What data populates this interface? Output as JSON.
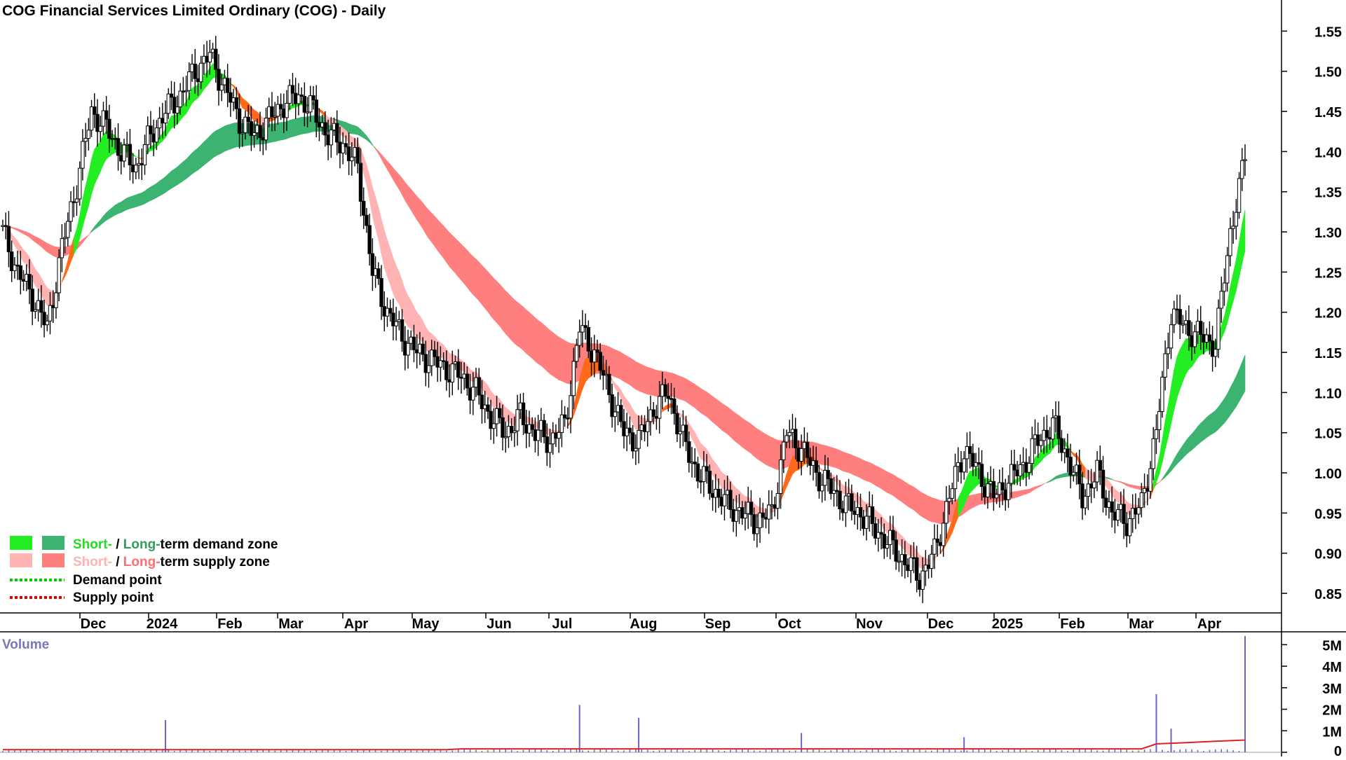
{
  "title": "COG Financial Services Limited Ordinary (COG) - Daily",
  "volume_label": "Volume",
  "legend": {
    "row1": {
      "short": "Short-",
      "sep": " / ",
      "long": "Long-",
      "rest": "term demand zone"
    },
    "row2": {
      "short": "Short-",
      "sep": " / ",
      "long": "Long-",
      "rest": "term supply zone"
    },
    "row3": "Demand point",
    "row4": "Supply point"
  },
  "colors": {
    "short_demand": "#22ee22",
    "long_demand": "#3cb371",
    "short_supply": "#ffb3b3",
    "long_supply": "#ff7f7f",
    "overlap": "#ff6a1a",
    "demand_point": "#00cc00",
    "supply_point": "#dd0000",
    "volume_bar": "#6666cc",
    "volume_avg": "#dd2222",
    "volume_label": "#7777bb"
  },
  "chart_data": {
    "type": "candlestick",
    "title": "COG Financial Services Limited Ordinary (COG) - Daily",
    "price_axis": {
      "ticks": [
        "1.55",
        "1.50",
        "1.45",
        "1.40",
        "1.35",
        "1.30",
        "1.25",
        "1.20",
        "1.15",
        "1.10",
        "1.05",
        "1.00",
        "0.95",
        "0.90",
        "0.85"
      ],
      "range": [
        0.83,
        1.58
      ]
    },
    "volume_axis": {
      "ticks": [
        "5M",
        "4M",
        "3M",
        "2M",
        "1M",
        "0"
      ],
      "range": [
        0,
        5500000
      ]
    },
    "months": [
      "Dec",
      "2024",
      "Feb",
      "Mar",
      "Apr",
      "May",
      "Jun",
      "Jul",
      "Aug",
      "Sep",
      "Oct",
      "Nov",
      "Dec",
      "2025",
      "Feb",
      "Mar",
      "Apr"
    ],
    "close_path": [
      [
        0,
        1.3
      ],
      [
        1,
        1.25
      ],
      [
        2,
        1.22
      ],
      [
        3,
        1.18
      ],
      [
        4,
        1.28
      ],
      [
        5,
        1.36
      ],
      [
        6,
        1.45
      ],
      [
        7,
        1.43
      ],
      [
        8,
        1.4
      ],
      [
        9,
        1.38
      ],
      [
        10,
        1.42
      ],
      [
        11,
        1.45
      ],
      [
        12,
        1.47
      ],
      [
        13,
        1.5
      ],
      [
        14,
        1.52
      ],
      [
        15,
        1.48
      ],
      [
        16,
        1.44
      ],
      [
        17,
        1.42
      ],
      [
        18,
        1.44
      ],
      [
        19,
        1.46
      ],
      [
        20,
        1.47
      ],
      [
        21,
        1.45
      ],
      [
        22,
        1.42
      ],
      [
        23,
        1.41
      ],
      [
        24,
        1.38
      ],
      [
        25,
        1.25
      ],
      [
        26,
        1.2
      ],
      [
        27,
        1.17
      ],
      [
        28,
        1.15
      ],
      [
        29,
        1.14
      ],
      [
        30,
        1.13
      ],
      [
        31,
        1.12
      ],
      [
        32,
        1.1
      ],
      [
        33,
        1.07
      ],
      [
        34,
        1.05
      ],
      [
        35,
        1.07
      ],
      [
        36,
        1.05
      ],
      [
        37,
        1.04
      ],
      [
        38,
        1.06
      ],
      [
        39,
        1.18
      ],
      [
        40,
        1.15
      ],
      [
        41,
        1.1
      ],
      [
        42,
        1.05
      ],
      [
        43,
        1.04
      ],
      [
        44,
        1.08
      ],
      [
        45,
        1.1
      ],
      [
        46,
        1.04
      ],
      [
        47,
        1.0
      ],
      [
        48,
        0.98
      ],
      [
        49,
        0.96
      ],
      [
        50,
        0.95
      ],
      [
        51,
        0.94
      ],
      [
        52,
        0.95
      ],
      [
        53,
        1.05
      ],
      [
        54,
        1.03
      ],
      [
        55,
        1.0
      ],
      [
        56,
        0.98
      ],
      [
        57,
        0.96
      ],
      [
        58,
        0.95
      ],
      [
        59,
        0.93
      ],
      [
        60,
        0.91
      ],
      [
        61,
        0.89
      ],
      [
        62,
        0.87
      ],
      [
        63,
        0.9
      ],
      [
        64,
        0.97
      ],
      [
        65,
        1.03
      ],
      [
        66,
        1.0
      ],
      [
        67,
        0.97
      ],
      [
        68,
        0.99
      ],
      [
        69,
        1.01
      ],
      [
        70,
        1.04
      ],
      [
        71,
        1.06
      ],
      [
        72,
        1.02
      ],
      [
        73,
        0.97
      ],
      [
        74,
        1.0
      ],
      [
        75,
        0.95
      ],
      [
        76,
        0.94
      ],
      [
        77,
        0.96
      ],
      [
        78,
        1.05
      ],
      [
        79,
        1.2
      ],
      [
        80,
        1.18
      ],
      [
        81,
        1.17
      ],
      [
        82,
        1.16
      ],
      [
        83,
        1.3
      ],
      [
        84,
        1.39
      ]
    ],
    "volume_spikes": [
      {
        "x": 11,
        "value": 1500000
      },
      {
        "x": 39,
        "value": 2200000
      },
      {
        "x": 43,
        "value": 1600000
      },
      {
        "x": 54,
        "value": 900000
      },
      {
        "x": 65,
        "value": 700000
      },
      {
        "x": 78,
        "value": 2700000
      },
      {
        "x": 79,
        "value": 1100000
      },
      {
        "x": 84,
        "value": 5400000
      }
    ],
    "legend": [
      "Short- / Long-term demand zone",
      "Short- / Long-term supply zone",
      "Demand point",
      "Supply point"
    ]
  }
}
